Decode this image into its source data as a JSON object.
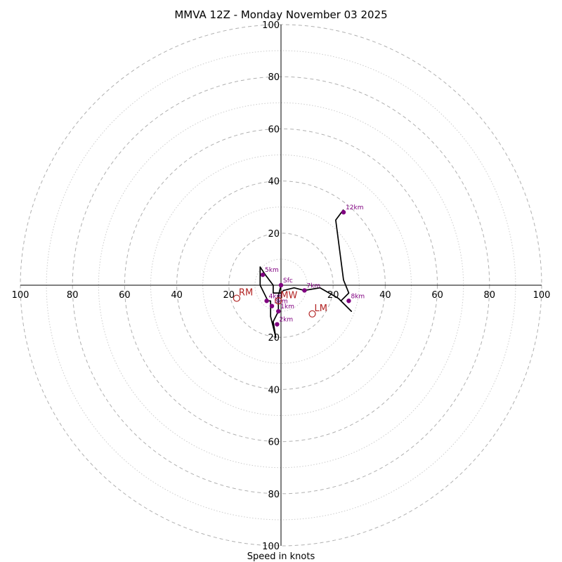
{
  "chart_data": {
    "type": "hodograph",
    "title": "MMVA 12Z - Monday November 03 2025",
    "xlabel": "Speed in knots",
    "max_speed": 100,
    "ring_step_major": 20,
    "ring_step_minor": 10,
    "tick_labels": {
      "x_left": [
        "100",
        "80",
        "60",
        "40",
        "20"
      ],
      "x_right": [
        "20",
        "40",
        "60",
        "80",
        "100"
      ],
      "y_up": [
        "20",
        "40",
        "60",
        "80",
        "100"
      ],
      "y_down": [
        "20",
        "40",
        "60",
        "80",
        "100"
      ]
    },
    "trace": {
      "name": "wind profile (u, v knots)",
      "color": "#000000",
      "points": [
        [
          0,
          0
        ],
        [
          -1,
          -4
        ],
        [
          -1,
          -10
        ],
        [
          -3,
          -14
        ],
        [
          -2,
          -20
        ],
        [
          -4,
          -12
        ],
        [
          -4,
          -6
        ],
        [
          -5,
          -6
        ],
        [
          -8,
          0
        ],
        [
          -8,
          7
        ],
        [
          -6,
          4
        ],
        [
          -3,
          0
        ],
        [
          -3,
          -3
        ],
        [
          0,
          -3
        ],
        [
          1,
          -2
        ],
        [
          5,
          -1
        ],
        [
          9,
          -2
        ],
        [
          15,
          -1
        ],
        [
          22,
          -5
        ],
        [
          27,
          -10
        ],
        [
          23,
          -6
        ],
        [
          26,
          -3
        ],
        [
          24,
          2
        ],
        [
          21,
          25
        ],
        [
          24,
          29
        ]
      ]
    },
    "height_markers": {
      "color": "#800080",
      "items": [
        {
          "label": "Sfc",
          "u": 0,
          "v": 0
        },
        {
          "label": "1km",
          "u": -1,
          "v": -10
        },
        {
          "label": "2km",
          "u": -1.5,
          "v": -15
        },
        {
          "label": "3km",
          "u": -3.5,
          "v": -8
        },
        {
          "label": "4km",
          "u": -5.5,
          "v": -6
        },
        {
          "label": "5km",
          "u": -7,
          "v": 4
        },
        {
          "label": "7km",
          "u": 9,
          "v": -2
        },
        {
          "label": "8km",
          "u": 26,
          "v": -6
        },
        {
          "label": "12km",
          "u": 24,
          "v": 28
        }
      ]
    },
    "storm_motion": {
      "color": "#b22222",
      "items": [
        {
          "label": "RM",
          "u": -17,
          "v": -5
        },
        {
          "label": "LM",
          "u": 12,
          "v": -11
        },
        {
          "label": "MW",
          "u": -1,
          "v": -6
        }
      ]
    }
  }
}
